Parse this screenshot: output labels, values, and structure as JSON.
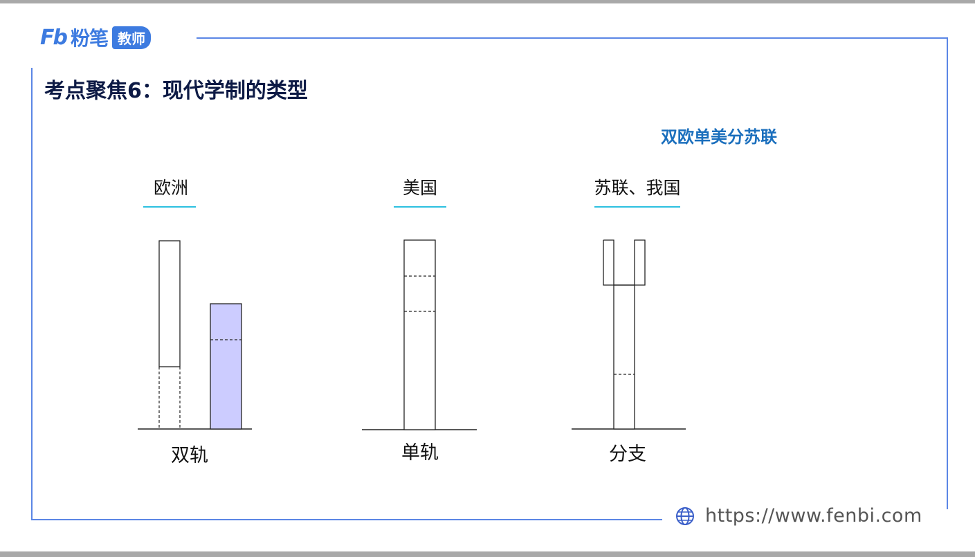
{
  "header": {
    "logo_fb": "Fb",
    "logo_text": "粉笔",
    "logo_badge": "教师"
  },
  "slide": {
    "title": "考点聚焦6：现代学制的类型",
    "mnemonic": "双欧单美分苏联"
  },
  "columns": [
    {
      "region": "欧洲",
      "type_label": "双轨"
    },
    {
      "region": "美国",
      "type_label": "单轨"
    },
    {
      "region": "苏联、我国",
      "type_label": "分支"
    }
  ],
  "footer": {
    "url": "https://www.fenbi.com"
  },
  "colors": {
    "frame": "#5b86e5",
    "accent_underline": "#2cc0e0",
    "title": "#0d1a45",
    "mnemonic": "#1b6fbd",
    "shaded_bar": "#ccccff"
  }
}
